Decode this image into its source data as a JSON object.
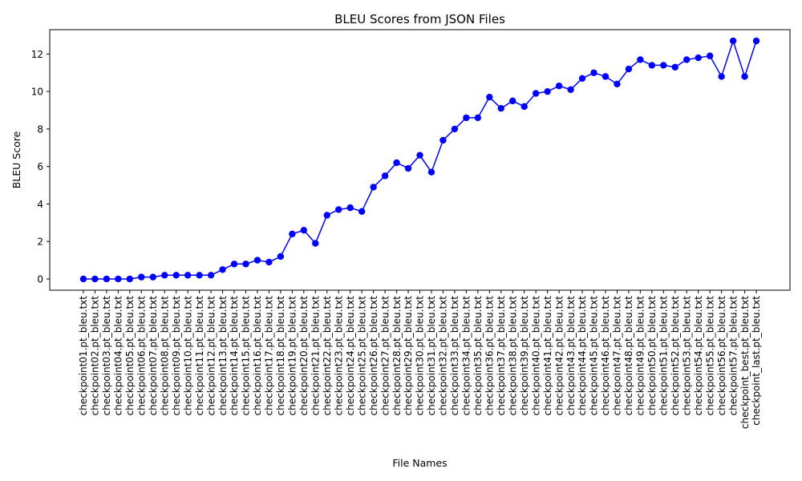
{
  "chart_data": {
    "type": "line",
    "title": "BLEU Scores from JSON Files",
    "xlabel": "File Names",
    "ylabel": "BLEU Score",
    "ylim": [
      -0.6,
      13.3
    ],
    "yticks": [
      0,
      2,
      4,
      6,
      8,
      10,
      12
    ],
    "grid": false,
    "legend": "none",
    "line_color": "#0000ff",
    "marker": "circle",
    "categories": [
      "checkpoint01.pt_bleu.txt",
      "checkpoint02.pt_bleu.txt",
      "checkpoint03.pt_bleu.txt",
      "checkpoint04.pt_bleu.txt",
      "checkpoint05.pt_bleu.txt",
      "checkpoint06.pt_bleu.txt",
      "checkpoint07.pt_bleu.txt",
      "checkpoint08.pt_bleu.txt",
      "checkpoint09.pt_bleu.txt",
      "checkpoint10.pt_bleu.txt",
      "checkpoint11.pt_bleu.txt",
      "checkpoint12.pt_bleu.txt",
      "checkpoint13.pt_bleu.txt",
      "checkpoint14.pt_bleu.txt",
      "checkpoint15.pt_bleu.txt",
      "checkpoint16.pt_bleu.txt",
      "checkpoint17.pt_bleu.txt",
      "checkpoint18.pt_bleu.txt",
      "checkpoint19.pt_bleu.txt",
      "checkpoint20.pt_bleu.txt",
      "checkpoint21.pt_bleu.txt",
      "checkpoint22.pt_bleu.txt",
      "checkpoint23.pt_bleu.txt",
      "checkpoint24.pt_bleu.txt",
      "checkpoint25.pt_bleu.txt",
      "checkpoint26.pt_bleu.txt",
      "checkpoint27.pt_bleu.txt",
      "checkpoint28.pt_bleu.txt",
      "checkpoint29.pt_bleu.txt",
      "checkpoint30.pt_bleu.txt",
      "checkpoint31.pt_bleu.txt",
      "checkpoint32.pt_bleu.txt",
      "checkpoint33.pt_bleu.txt",
      "checkpoint34.pt_bleu.txt",
      "checkpoint35.pt_bleu.txt",
      "checkpoint36.pt_bleu.txt",
      "checkpoint37.pt_bleu.txt",
      "checkpoint38.pt_bleu.txt",
      "checkpoint39.pt_bleu.txt",
      "checkpoint40.pt_bleu.txt",
      "checkpoint41.pt_bleu.txt",
      "checkpoint42.pt_bleu.txt",
      "checkpoint43.pt_bleu.txt",
      "checkpoint44.pt_bleu.txt",
      "checkpoint45.pt_bleu.txt",
      "checkpoint46.pt_bleu.txt",
      "checkpoint47.pt_bleu.txt",
      "checkpoint48.pt_bleu.txt",
      "checkpoint49.pt_bleu.txt",
      "checkpoint50.pt_bleu.txt",
      "checkpoint51.pt_bleu.txt",
      "checkpoint52.pt_bleu.txt",
      "checkpoint53.pt_bleu.txt",
      "checkpoint54.pt_bleu.txt",
      "checkpoint55.pt_bleu.txt",
      "checkpoint56.pt_bleu.txt",
      "checkpoint57.pt_bleu.txt",
      "checkpoint_best.pt_bleu.txt",
      "checkpoint_last.pt_bleu.txt"
    ],
    "values": [
      0.0,
      0.0,
      0.0,
      0.0,
      0.0,
      0.1,
      0.1,
      0.2,
      0.2,
      0.2,
      0.2,
      0.2,
      0.5,
      0.8,
      0.8,
      1.0,
      0.9,
      1.2,
      2.4,
      2.6,
      1.9,
      3.4,
      3.7,
      3.8,
      3.6,
      4.9,
      5.5,
      6.2,
      5.9,
      6.6,
      5.7,
      7.4,
      8.0,
      8.6,
      8.6,
      9.7,
      9.1,
      9.5,
      9.2,
      9.9,
      10.0,
      10.3,
      10.1,
      10.7,
      11.0,
      10.8,
      10.4,
      11.2,
      11.7,
      11.4,
      11.4,
      11.3,
      11.7,
      11.8,
      11.9,
      10.8,
      12.7,
      10.8,
      12.7
    ]
  }
}
